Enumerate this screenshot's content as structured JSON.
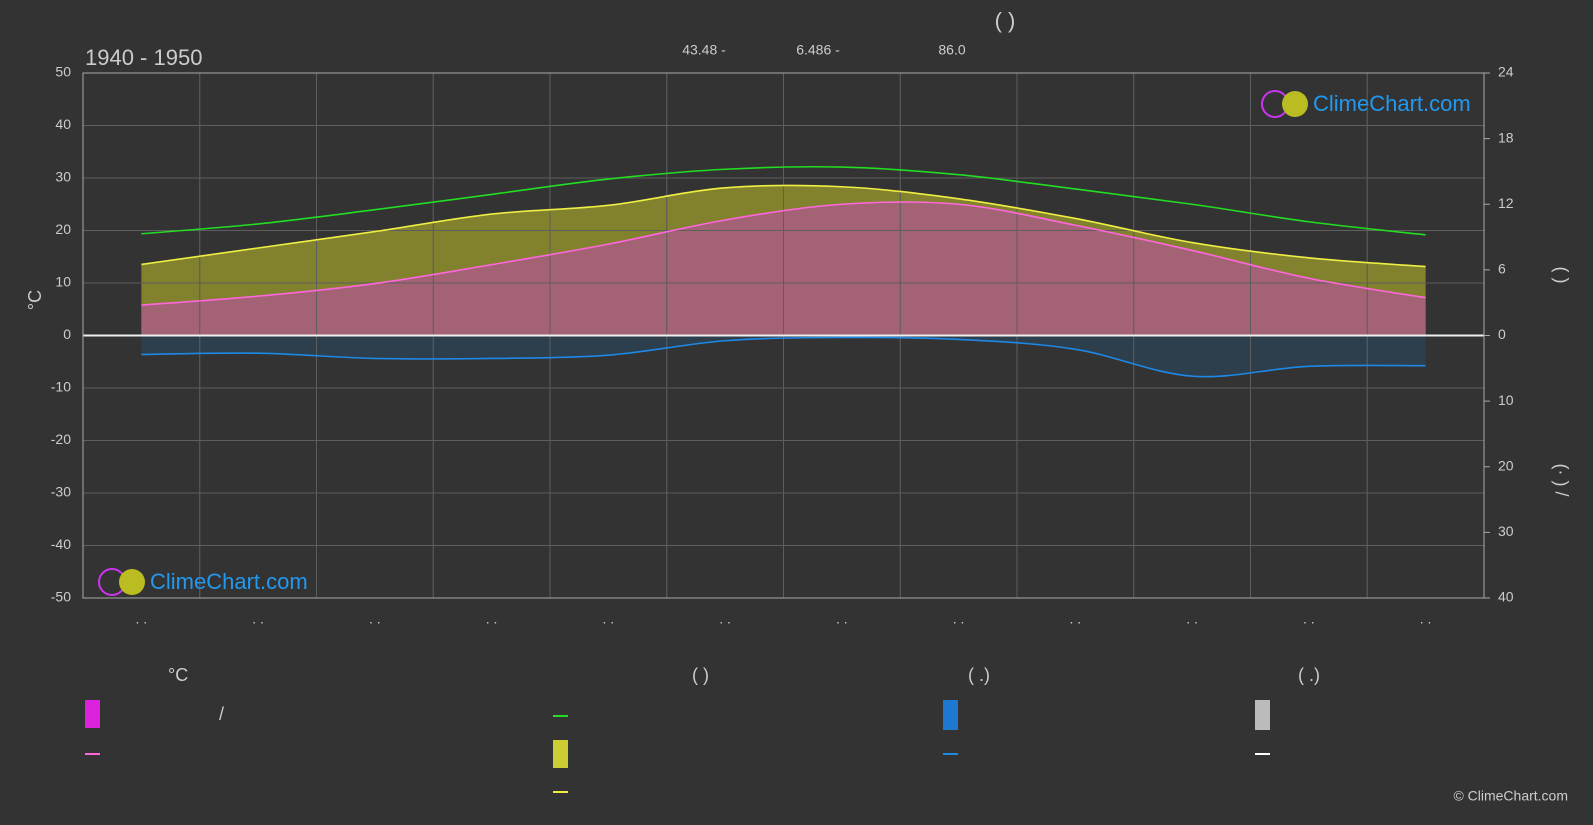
{
  "chart_data": {
    "type": "climate",
    "title": "(        )",
    "period": "1940 - 1950",
    "subtitle_items": [
      "43.48 -",
      "6.486 -",
      "86.0"
    ],
    "ylabel": "°C",
    "y2label": "(      )",
    "y3label": "(·   )  /",
    "categories": [
      ". .",
      ". .",
      ". .",
      ". .",
      ". .",
      ". .",
      ". .",
      ". .",
      ". .",
      ". .",
      ". .",
      ". ."
    ],
    "ylim": [
      -50,
      50
    ],
    "yticks": [
      -50,
      -40,
      -30,
      -20,
      -10,
      0,
      10,
      20,
      30,
      40,
      50
    ],
    "y2lim": [
      0,
      24
    ],
    "y2ticks": [
      0,
      6,
      12,
      18,
      24
    ],
    "y3lim": [
      0,
      40
    ],
    "y3ticks": [
      10,
      20,
      30,
      40
    ],
    "grid": true,
    "series": [
      {
        "kind": "daylight",
        "axis": "y2",
        "color": "#22dd22",
        "values": [
          9.3,
          10.2,
          11.5,
          12.9,
          14.3,
          15.2,
          15.4,
          14.7,
          13.4,
          12.0,
          10.4,
          9.2
        ]
      },
      {
        "kind": "sunshine",
        "axis": "y2",
        "color": "#eeee44",
        "fill": "#8a8a2e",
        "values": [
          6.5,
          8.0,
          9.5,
          11.1,
          11.9,
          13.5,
          13.6,
          12.5,
          10.7,
          8.5,
          7.1,
          6.3
        ]
      },
      {
        "kind": "temperature",
        "axis": "y",
        "color": "#ff66dd",
        "fill": "#b05a8e",
        "values": [
          5.8,
          7.5,
          9.9,
          13.5,
          17.4,
          22.0,
          25.0,
          25.0,
          21.0,
          16.2,
          10.9,
          7.2
        ]
      },
      {
        "kind": "precipitation",
        "axis": "y3",
        "color": "#1e88e5",
        "fill": "#2c4050",
        "values": [
          2.9,
          2.7,
          3.5,
          3.5,
          3.0,
          0.8,
          0.3,
          0.6,
          2.1,
          6.2,
          4.7,
          4.6
        ]
      }
    ],
    "legend": {
      "headers": [
        "°C",
        "(          )",
        "(   .)",
        "(   .)"
      ],
      "texts": [
        "/"
      ]
    },
    "watermark": "ClimeChart.com",
    "copyright": "© ClimeChart.com"
  }
}
